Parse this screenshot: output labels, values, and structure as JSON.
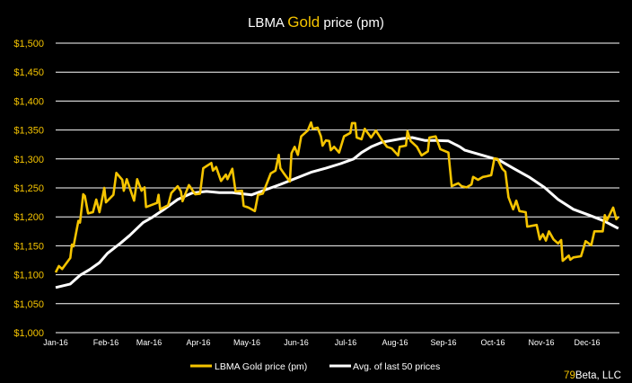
{
  "chart_data": {
    "type": "line",
    "title": {
      "prefix": "LBMA ",
      "highlight": "Gold",
      "suffix": " price (pm)"
    },
    "xlabel": "",
    "ylabel": "",
    "ylim": [
      1000,
      1500
    ],
    "xlim": [
      "2016-01-01",
      "2016-12-31"
    ],
    "grid": true,
    "legend_position": "bottom",
    "y_ticks": [
      "$1,000",
      "$1,050",
      "$1,100",
      "$1,150",
      "$1,200",
      "$1,250",
      "$1,300",
      "$1,350",
      "$1,400",
      "$1,450",
      "$1,500"
    ],
    "y_tick_values": [
      1000,
      1050,
      1100,
      1150,
      1200,
      1250,
      1300,
      1350,
      1400,
      1450,
      1500
    ],
    "x_ticks": [
      "Jan-16",
      "Feb-16",
      "Mar-16",
      "Apr-16",
      "May-16",
      "Jun-16",
      "Jul-16",
      "Aug-16",
      "Sep-16",
      "Oct-16",
      "Nov-16",
      "Dec-16"
    ],
    "colors": {
      "gold": "#f5c400",
      "average": "#ffffff",
      "background": "#000000",
      "grid": "#ffffff"
    },
    "series": [
      {
        "name": "LBMA Gold price (pm)",
        "color": "#f5c400",
        "points": [
          [
            "2016-01-01",
            1104
          ],
          [
            "2016-01-03",
            1115
          ],
          [
            "2016-01-05",
            1110
          ],
          [
            "2016-01-10",
            1129
          ],
          [
            "2016-01-11",
            1152
          ],
          [
            "2016-01-12",
            1149
          ],
          [
            "2016-01-15",
            1193
          ],
          [
            "2016-01-16",
            1190
          ],
          [
            "2016-01-18",
            1239
          ],
          [
            "2016-01-19",
            1236
          ],
          [
            "2016-01-21",
            1206
          ],
          [
            "2016-01-24",
            1208
          ],
          [
            "2016-01-26",
            1230
          ],
          [
            "2016-01-28",
            1208
          ],
          [
            "2016-01-31",
            1250
          ],
          [
            "2016-02-01",
            1225
          ],
          [
            "2016-02-06",
            1238
          ],
          [
            "2016-02-08",
            1276
          ],
          [
            "2016-02-12",
            1264
          ],
          [
            "2016-02-13",
            1245
          ],
          [
            "2016-02-15",
            1265
          ],
          [
            "2016-02-20",
            1228
          ],
          [
            "2016-02-22",
            1265
          ],
          [
            "2016-02-25",
            1245
          ],
          [
            "2016-02-27",
            1251
          ],
          [
            "2016-02-28",
            1217
          ],
          [
            "2016-03-06",
            1224
          ],
          [
            "2016-03-07",
            1238
          ],
          [
            "2016-03-08",
            1213
          ],
          [
            "2016-03-13",
            1220
          ],
          [
            "2016-03-15",
            1241
          ],
          [
            "2016-03-19",
            1253
          ],
          [
            "2016-03-21",
            1244
          ],
          [
            "2016-03-22",
            1227
          ],
          [
            "2016-03-26",
            1255
          ],
          [
            "2016-03-30",
            1239
          ],
          [
            "2016-04-02",
            1240
          ],
          [
            "2016-04-04",
            1284
          ],
          [
            "2016-04-09",
            1293
          ],
          [
            "2016-04-10",
            1280
          ],
          [
            "2016-04-12",
            1286
          ],
          [
            "2016-04-15",
            1262
          ],
          [
            "2016-04-18",
            1273
          ],
          [
            "2016-04-19",
            1265
          ],
          [
            "2016-04-22",
            1283
          ],
          [
            "2016-04-24",
            1244
          ],
          [
            "2016-04-28",
            1245
          ],
          [
            "2016-04-29",
            1219
          ],
          [
            "2016-05-02",
            1216
          ],
          [
            "2016-05-06",
            1210
          ],
          [
            "2016-05-08",
            1238
          ],
          [
            "2016-05-11",
            1240
          ],
          [
            "2016-05-14",
            1261
          ],
          [
            "2016-05-16",
            1275
          ],
          [
            "2016-05-19",
            1280
          ],
          [
            "2016-05-21",
            1307
          ],
          [
            "2016-05-22",
            1284
          ],
          [
            "2016-05-24",
            1276
          ],
          [
            "2016-05-28",
            1261
          ],
          [
            "2016-05-29",
            1310
          ],
          [
            "2016-05-31",
            1321
          ],
          [
            "2016-06-02",
            1307
          ],
          [
            "2016-06-04",
            1339
          ],
          [
            "2016-06-08",
            1349
          ],
          [
            "2016-06-10",
            1363
          ],
          [
            "2016-06-11",
            1352
          ],
          [
            "2016-06-14",
            1354
          ],
          [
            "2016-06-16",
            1339
          ],
          [
            "2016-06-17",
            1323
          ],
          [
            "2016-06-19",
            1332
          ],
          [
            "2016-06-21",
            1331
          ],
          [
            "2016-06-22",
            1315
          ],
          [
            "2016-06-24",
            1321
          ],
          [
            "2016-06-27",
            1311
          ],
          [
            "2016-06-30",
            1339
          ],
          [
            "2016-07-04",
            1345
          ],
          [
            "2016-07-05",
            1362
          ],
          [
            "2016-07-07",
            1362
          ],
          [
            "2016-07-08",
            1337
          ],
          [
            "2016-07-11",
            1334
          ],
          [
            "2016-07-13",
            1352
          ],
          [
            "2016-07-17",
            1337
          ],
          [
            "2016-07-20",
            1349
          ],
          [
            "2016-07-24",
            1332
          ],
          [
            "2016-07-27",
            1321
          ],
          [
            "2016-07-30",
            1318
          ],
          [
            "2016-08-03",
            1306
          ],
          [
            "2016-08-04",
            1321
          ],
          [
            "2016-08-08",
            1323
          ],
          [
            "2016-08-09",
            1348
          ],
          [
            "2016-08-11",
            1331
          ],
          [
            "2016-08-15",
            1321
          ],
          [
            "2016-08-18",
            1306
          ],
          [
            "2016-08-22",
            1313
          ],
          [
            "2016-08-23",
            1337
          ],
          [
            "2016-08-27",
            1339
          ],
          [
            "2016-08-30",
            1317
          ],
          [
            "2016-09-04",
            1311
          ],
          [
            "2016-09-06",
            1253
          ],
          [
            "2016-09-10",
            1258
          ],
          [
            "2016-09-12",
            1253
          ],
          [
            "2016-09-15",
            1251
          ],
          [
            "2016-09-18",
            1256
          ],
          [
            "2016-09-19",
            1269
          ],
          [
            "2016-09-22",
            1264
          ],
          [
            "2016-09-25",
            1269
          ],
          [
            "2016-09-27",
            1270
          ],
          [
            "2016-09-30",
            1272
          ],
          [
            "2016-10-02",
            1301
          ],
          [
            "2016-10-04",
            1300
          ],
          [
            "2016-10-07",
            1283
          ],
          [
            "2016-10-09",
            1278
          ],
          [
            "2016-10-11",
            1234
          ],
          [
            "2016-10-14",
            1213
          ],
          [
            "2016-10-16",
            1228
          ],
          [
            "2016-10-18",
            1210
          ],
          [
            "2016-10-22",
            1208
          ],
          [
            "2016-10-23",
            1183
          ],
          [
            "2016-10-29",
            1186
          ],
          [
            "2016-10-31",
            1161
          ],
          [
            "2016-11-02",
            1170
          ],
          [
            "2016-11-04",
            1159
          ],
          [
            "2016-11-06",
            1175
          ],
          [
            "2016-11-09",
            1161
          ],
          [
            "2016-11-12",
            1154
          ],
          [
            "2016-11-14",
            1160
          ],
          [
            "2016-11-15",
            1124
          ],
          [
            "2016-11-19",
            1133
          ],
          [
            "2016-11-20",
            1126
          ],
          [
            "2016-11-22",
            1130
          ],
          [
            "2016-11-27",
            1132
          ],
          [
            "2016-11-30",
            1158
          ],
          [
            "2016-12-05",
            1151
          ],
          [
            "2016-12-08",
            1175
          ],
          [
            "2016-12-16",
            1175
          ],
          [
            "2016-12-18",
            1203
          ],
          [
            "2016-12-20",
            1194
          ],
          [
            "2016-12-26",
            1216
          ],
          [
            "2016-12-29",
            1196
          ],
          [
            "2016-12-31",
            1200
          ]
        ]
      },
      {
        "name": "Avg. of last 50 prices",
        "color": "#ffffff",
        "points": [
          [
            "2016-01-01",
            1078
          ],
          [
            "2016-01-10",
            1084
          ],
          [
            "2016-01-16",
            1099
          ],
          [
            "2016-01-22",
            1109
          ],
          [
            "2016-01-28",
            1121
          ],
          [
            "2016-02-02",
            1137
          ],
          [
            "2016-02-11",
            1155
          ],
          [
            "2016-02-17",
            1168
          ],
          [
            "2016-02-26",
            1190
          ],
          [
            "2016-03-03",
            1199
          ],
          [
            "2016-03-11",
            1214
          ],
          [
            "2016-03-19",
            1230
          ],
          [
            "2016-03-28",
            1241
          ],
          [
            "2016-04-06",
            1244
          ],
          [
            "2016-04-14",
            1242
          ],
          [
            "2016-04-22",
            1242
          ],
          [
            "2016-05-04",
            1238
          ],
          [
            "2016-05-13",
            1247
          ],
          [
            "2016-05-22",
            1256
          ],
          [
            "2016-06-01",
            1267
          ],
          [
            "2016-06-10",
            1277
          ],
          [
            "2016-06-19",
            1284
          ],
          [
            "2016-06-28",
            1292
          ],
          [
            "2016-07-06",
            1300
          ],
          [
            "2016-07-11",
            1311
          ],
          [
            "2016-07-17",
            1321
          ],
          [
            "2016-07-24",
            1329
          ],
          [
            "2016-08-05",
            1335
          ],
          [
            "2016-08-12",
            1337
          ],
          [
            "2016-08-20",
            1332
          ],
          [
            "2016-08-27",
            1332
          ],
          [
            "2016-09-04",
            1331
          ],
          [
            "2016-09-11",
            1321
          ],
          [
            "2016-09-14",
            1315
          ],
          [
            "2016-10-05",
            1298
          ],
          [
            "2016-10-14",
            1284
          ],
          [
            "2016-10-24",
            1269
          ],
          [
            "2016-11-03",
            1251
          ],
          [
            "2016-11-12",
            1230
          ],
          [
            "2016-11-22",
            1213
          ],
          [
            "2016-12-03",
            1203
          ],
          [
            "2016-12-17",
            1193
          ],
          [
            "2016-12-31",
            1180
          ]
        ]
      }
    ]
  },
  "credit": {
    "number": "79",
    "rest": "Beta, LLC"
  }
}
